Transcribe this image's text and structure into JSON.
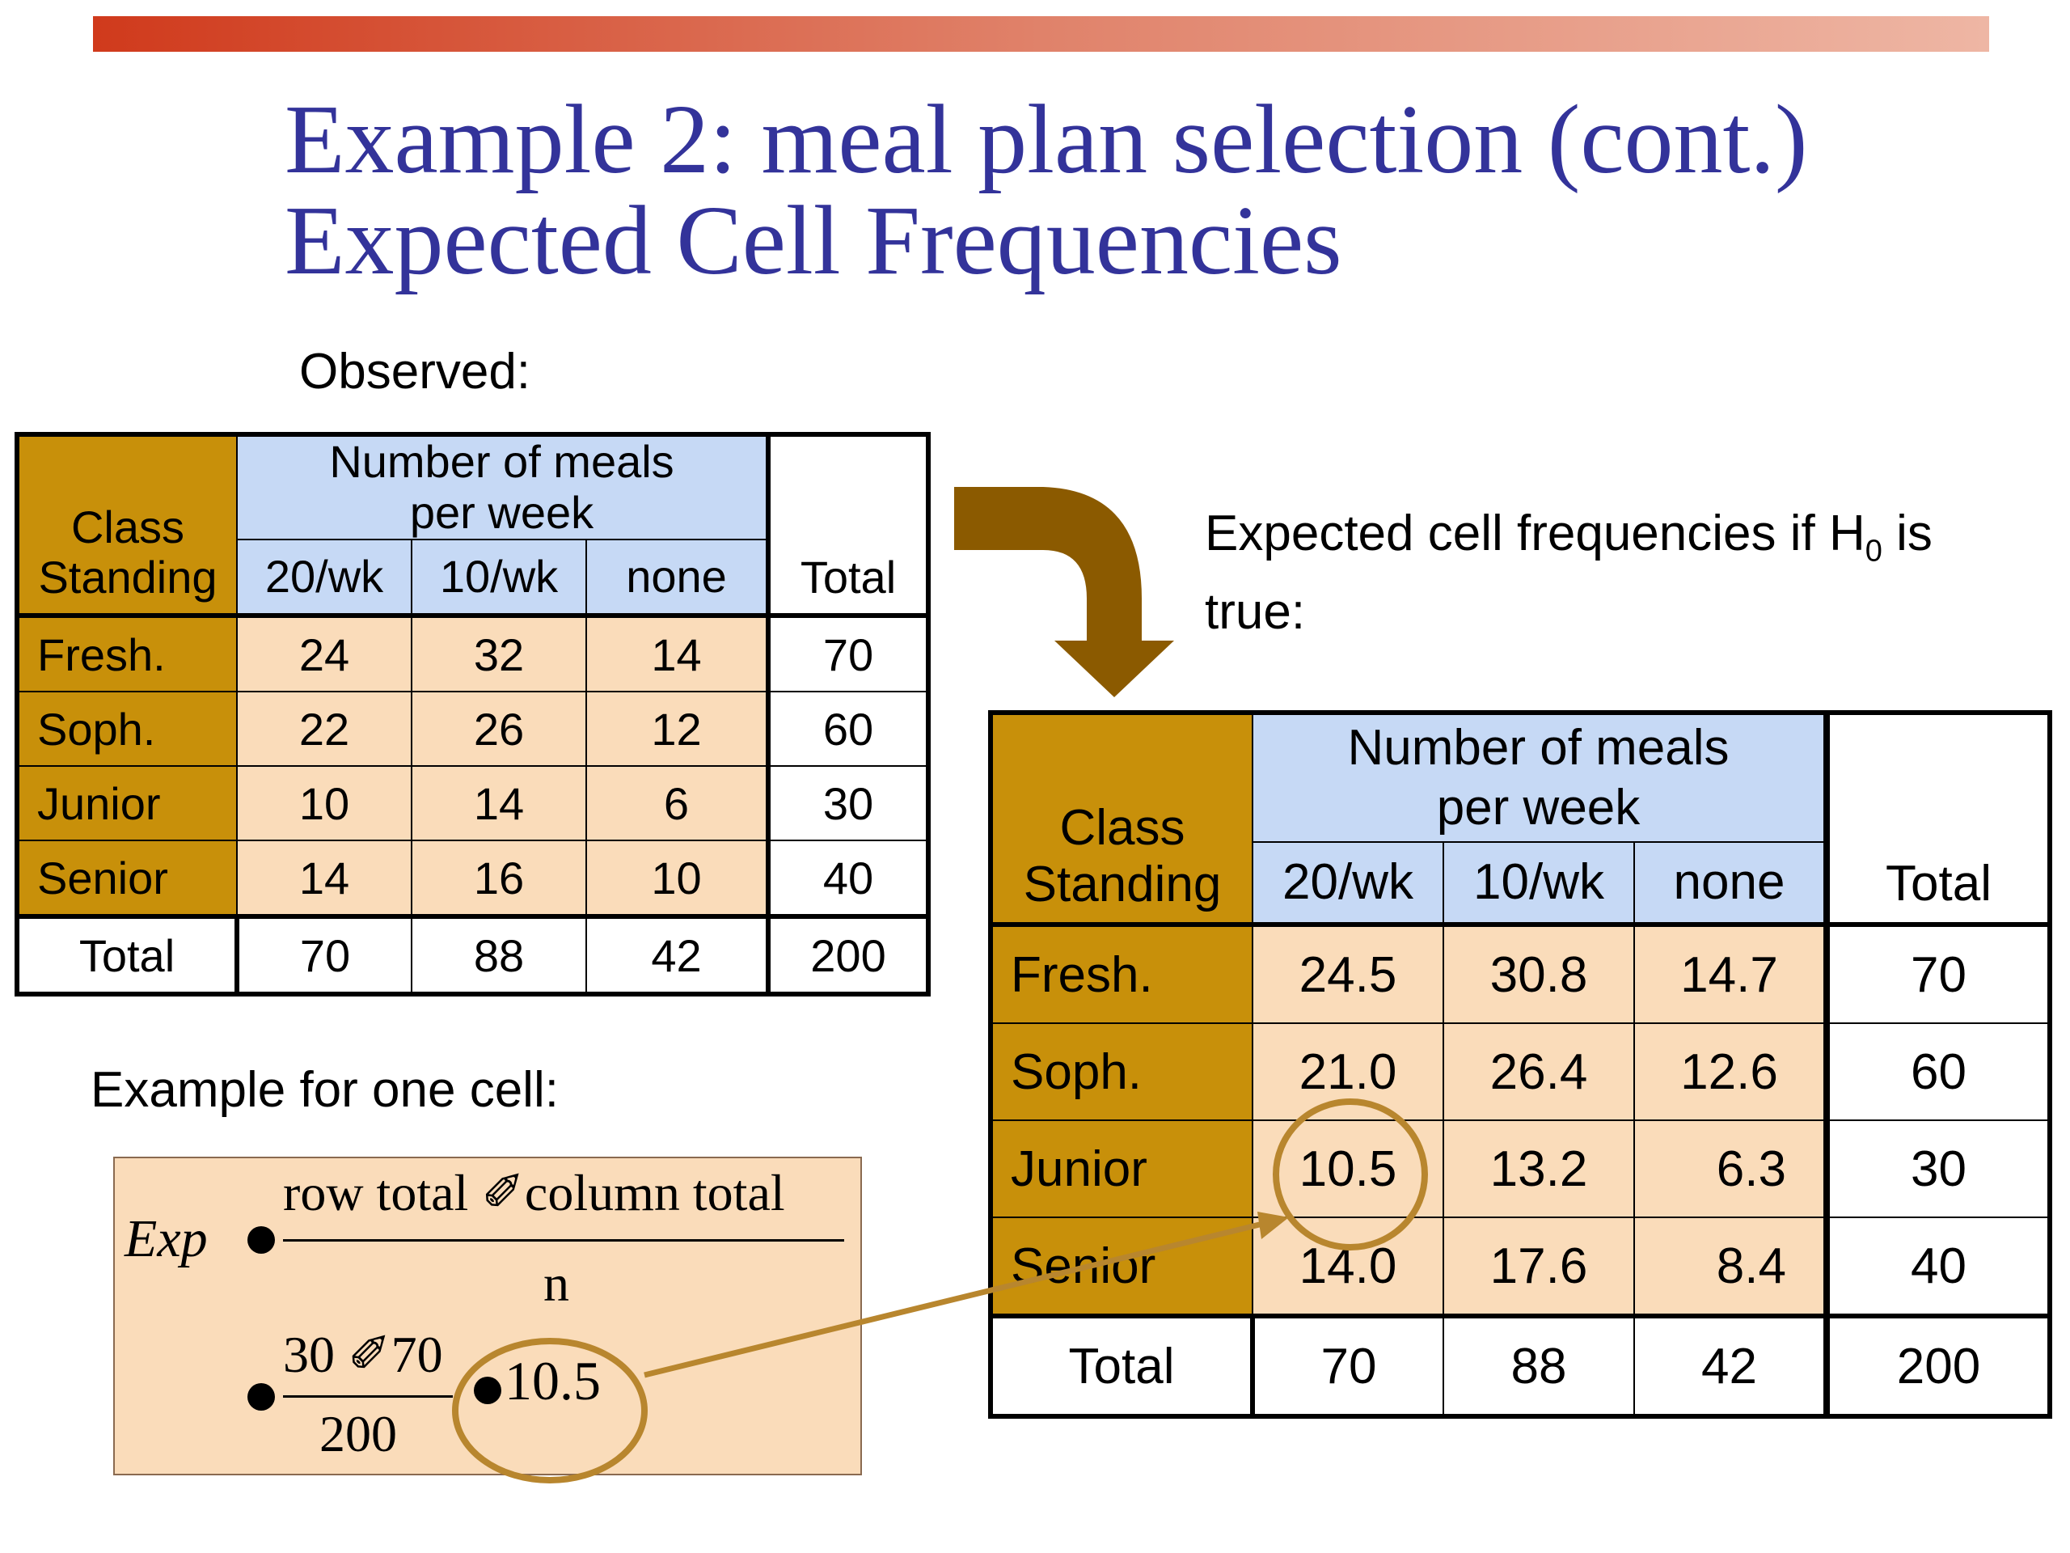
{
  "title": {
    "line1": "Example 2: meal plan selection (cont.)",
    "line2": "Expected Cell Frequencies"
  },
  "observed_label": "Observed:",
  "expected_label": {
    "text_before": "Expected cell frequencies  if H",
    "subscript": "0",
    "text_after": " is",
    "line2": "true:"
  },
  "example_label": "Example for one cell:",
  "observed_table": {
    "row_header": [
      "Class",
      "Standing"
    ],
    "group_header": [
      "Number of meals",
      "per week"
    ],
    "columns": [
      "20/wk",
      "10/wk",
      "none"
    ],
    "total_label": "Total",
    "rows": [
      {
        "label": "Fresh.",
        "values": [
          "24",
          "32",
          "14"
        ],
        "total": "70"
      },
      {
        "label": "Soph.",
        "values": [
          "22",
          "26",
          "12"
        ],
        "total": "60"
      },
      {
        "label": "Junior",
        "values": [
          "10",
          "14",
          "6"
        ],
        "total": "30"
      },
      {
        "label": "Senior",
        "values": [
          "14",
          "16",
          "10"
        ],
        "total": "40"
      }
    ],
    "totals_row": {
      "label": "Total",
      "values": [
        "70",
        "88",
        "42"
      ],
      "total": "200"
    }
  },
  "expected_table": {
    "row_header": [
      "Class",
      "Standing"
    ],
    "group_header": [
      "Number of meals",
      "per week"
    ],
    "columns": [
      "20/wk",
      "10/wk",
      "none"
    ],
    "total_label": "Total",
    "rows": [
      {
        "label": "Fresh.",
        "values": [
          "24.5",
          "30.8",
          "14.7"
        ],
        "total": "70"
      },
      {
        "label": "Soph.",
        "values": [
          "21.0",
          "26.4",
          "12.6"
        ],
        "total": "60"
      },
      {
        "label": "Junior",
        "values": [
          "10.5",
          "13.2",
          "6.3"
        ],
        "total": "30"
      },
      {
        "label": "Senior",
        "values": [
          "14.0",
          "17.6",
          "8.4"
        ],
        "total": "40"
      }
    ],
    "totals_row": {
      "label": "Total",
      "values": [
        "70",
        "88",
        "42"
      ],
      "total": "200"
    }
  },
  "formula": {
    "lhs": "Exp",
    "numerator": "row total ✐column total",
    "denominator": "n",
    "sub_numerator": "30 ✐70",
    "sub_denominator": "200",
    "result": "10.5"
  },
  "colors": {
    "title": "#33339a",
    "class_standing": "#c8900a",
    "meals_header": "#c6d9f5",
    "data_cells": "#fadcba",
    "arrow": "#8b5a00",
    "highlight": "#b8862e",
    "top_bar_start": "#d03a1c",
    "top_bar_end": "#eeb6a4"
  }
}
